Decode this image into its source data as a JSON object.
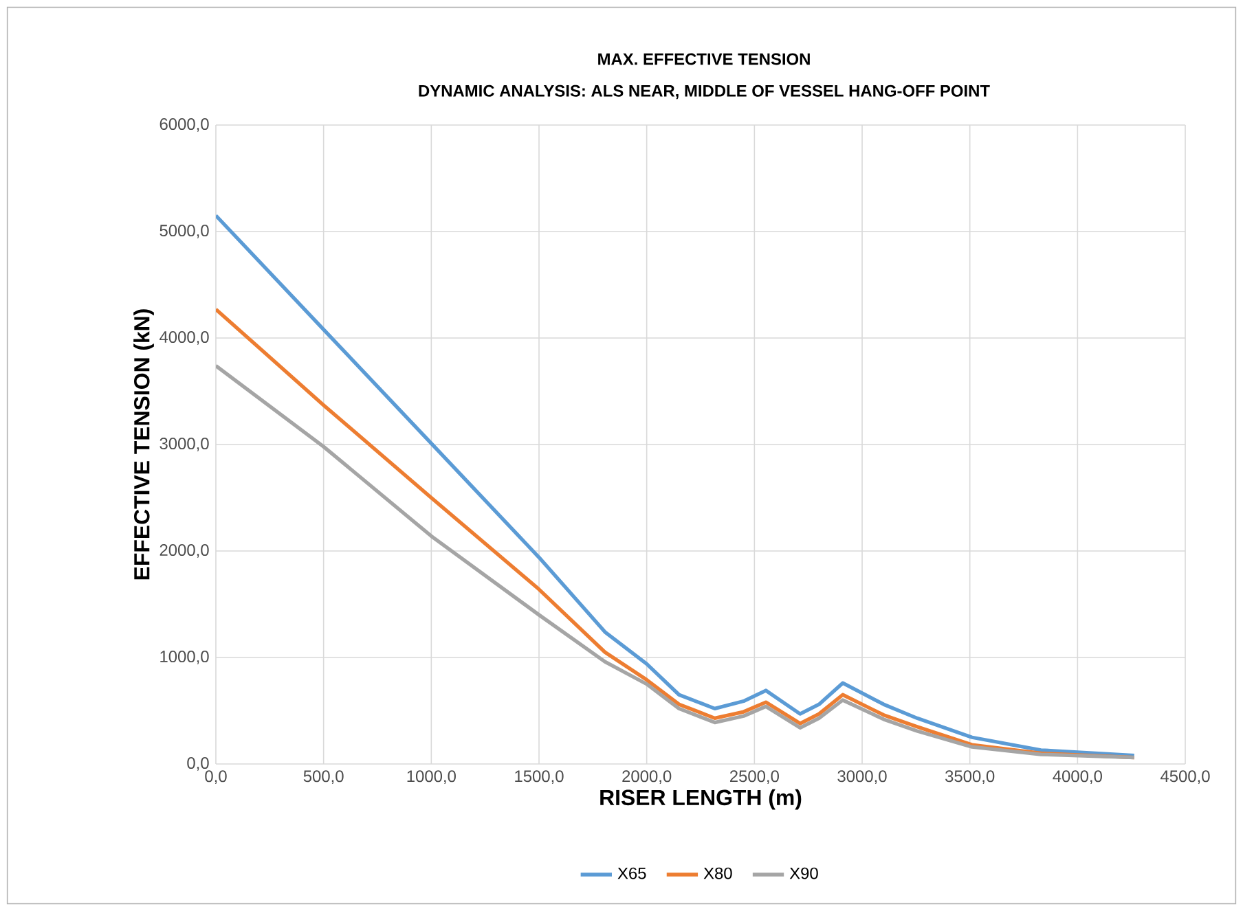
{
  "chart_data": {
    "type": "line",
    "title": "MAX. EFFECTIVE TENSION",
    "subtitle": "DYNAMIC ANALYSIS: ALS NEAR, MIDDLE OF VESSEL HANG-OFF POINT",
    "xlabel": "RISER LENGTH (m)",
    "ylabel": "EFFECTIVE TENSION (kN)",
    "x": [
      0,
      500,
      1000,
      1500,
      1806,
      2000,
      2150,
      2316,
      2450,
      2553,
      2712,
      2800,
      2910,
      3100,
      3255,
      3510,
      3830,
      4263
    ],
    "series": [
      {
        "name": "X65",
        "color": "#5b9bd5",
        "values": [
          5150,
          4080,
          3010,
          1940,
          1240,
          940,
          650,
          520,
          590,
          690,
          470,
          560,
          760,
          560,
          430,
          250,
          130,
          80
        ]
      },
      {
        "name": "X80",
        "color": "#ed7d31",
        "values": [
          4270,
          3370,
          2500,
          1640,
          1050,
          790,
          560,
          430,
          490,
          580,
          380,
          470,
          650,
          460,
          350,
          180,
          100,
          60
        ]
      },
      {
        "name": "X90",
        "color": "#a5a5a5",
        "values": [
          3740,
          2980,
          2140,
          1400,
          960,
          750,
          520,
          390,
          450,
          540,
          340,
          430,
          600,
          420,
          310,
          160,
          90,
          60
        ]
      }
    ],
    "xlim": [
      0,
      4500
    ],
    "ylim": [
      0,
      6000
    ],
    "xticks": [
      {
        "value": 0,
        "label": "0,0"
      },
      {
        "value": 500,
        "label": "500,0"
      },
      {
        "value": 1000,
        "label": "1000,0"
      },
      {
        "value": 1500,
        "label": "1500,0"
      },
      {
        "value": 2000,
        "label": "2000,0"
      },
      {
        "value": 2500,
        "label": "2500,0"
      },
      {
        "value": 3000,
        "label": "3000,0"
      },
      {
        "value": 3500,
        "label": "3500,0"
      },
      {
        "value": 4000,
        "label": "4000,0"
      },
      {
        "value": 4500,
        "label": "4500,0"
      }
    ],
    "yticks": [
      {
        "value": 0,
        "label": "0,0"
      },
      {
        "value": 1000,
        "label": "1000,0"
      },
      {
        "value": 2000,
        "label": "2000,0"
      },
      {
        "value": 3000,
        "label": "3000,0"
      },
      {
        "value": 4000,
        "label": "4000,0"
      },
      {
        "value": 5000,
        "label": "5000,0"
      },
      {
        "value": 6000,
        "label": "6000,0"
      }
    ],
    "grid": true,
    "legend": "bottom",
    "marker": "none",
    "line_style": "solid"
  }
}
